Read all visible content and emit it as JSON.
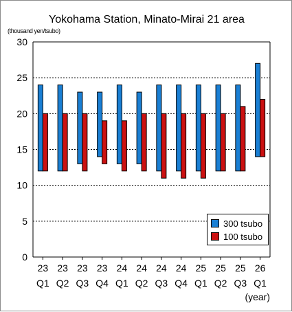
{
  "title": "Yokohama Station, Minato-Mirai 21 area",
  "unit_label": "(thousand yen/tsubo)",
  "chart_data": {
    "type": "bar",
    "title": "Yokohama Station, Minato-Mirai 21 area",
    "ylabel": "(thousand yen/tsubo)",
    "xlabel": "(year)",
    "ylim": [
      0,
      30
    ],
    "yticks": [
      0,
      5,
      10,
      15,
      20,
      25,
      30
    ],
    "grid": true,
    "legend_position": "lower-right",
    "categories": [
      {
        "year": "23",
        "quarter": "Q1"
      },
      {
        "year": "23",
        "quarter": "Q2"
      },
      {
        "year": "23",
        "quarter": "Q3"
      },
      {
        "year": "23",
        "quarter": "Q4"
      },
      {
        "year": "24",
        "quarter": "Q1"
      },
      {
        "year": "24",
        "quarter": "Q2"
      },
      {
        "year": "24",
        "quarter": "Q3"
      },
      {
        "year": "24",
        "quarter": "Q4"
      },
      {
        "year": "25",
        "quarter": "Q1"
      },
      {
        "year": "25",
        "quarter": "Q2"
      },
      {
        "year": "25",
        "quarter": "Q3"
      },
      {
        "year": "26",
        "quarter": "Q1"
      }
    ],
    "series": [
      {
        "name": "300 tsubo",
        "color": "#1a7fd4",
        "ranges": [
          [
            12,
            24
          ],
          [
            12,
            24
          ],
          [
            13,
            23
          ],
          [
            14,
            23
          ],
          [
            13,
            24
          ],
          [
            13,
            23
          ],
          [
            12,
            24
          ],
          [
            12,
            24
          ],
          [
            12,
            24
          ],
          [
            12,
            24
          ],
          [
            12,
            24
          ],
          [
            14,
            27
          ]
        ]
      },
      {
        "name": "100 tsubo",
        "color": "#cc1111",
        "ranges": [
          [
            12,
            20
          ],
          [
            12,
            20
          ],
          [
            12,
            20
          ],
          [
            13,
            19
          ],
          [
            12,
            19
          ],
          [
            12,
            20
          ],
          [
            11,
            20
          ],
          [
            11,
            20
          ],
          [
            11,
            20
          ],
          [
            12,
            20
          ],
          [
            12,
            21
          ],
          [
            14,
            22
          ]
        ]
      }
    ]
  }
}
